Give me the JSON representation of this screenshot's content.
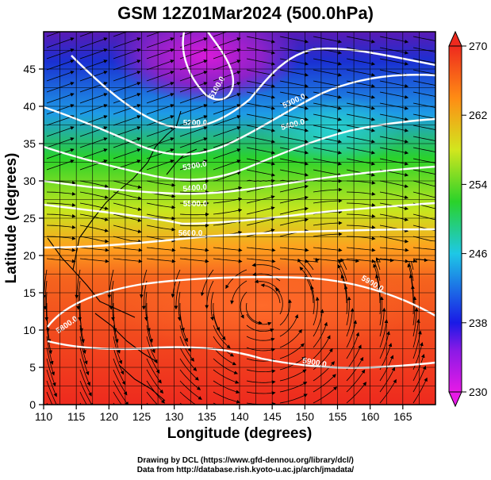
{
  "title": "GSM 12Z01Mar2024 (500.0hPa)",
  "map": {
    "lon_range": [
      110,
      170
    ],
    "lat_range": [
      0,
      50
    ],
    "x_ticks": [
      "110",
      "115",
      "120",
      "125",
      "130",
      "135",
      "140",
      "145",
      "150",
      "155",
      "160",
      "165"
    ],
    "y_ticks": [
      "0",
      "5",
      "10",
      "15",
      "20",
      "25",
      "30",
      "35",
      "40",
      "45"
    ],
    "x_label": "Longitude (degrees)",
    "y_label": "Latitude  (degrees)",
    "contours": [
      {
        "label": "5100.0",
        "value": 5100
      },
      {
        "label": "5200.0",
        "value": 5200
      },
      {
        "label": "5300.0",
        "value": 5300
      },
      {
        "label": "5400.0",
        "value": 5400
      },
      {
        "label": "5500.0",
        "value": 5500
      },
      {
        "label": "5600.0",
        "value": 5600
      },
      {
        "label": "5800.0",
        "value": 5800
      },
      {
        "label": "5900.0",
        "value": 5900
      }
    ],
    "colorbar": {
      "ticks": [
        "230",
        "238",
        "246",
        "254",
        "262",
        "270"
      ],
      "min": 230,
      "max": 270
    },
    "colors": {
      "min": "#c800c8",
      "low": "#1a1ae6",
      "mid_low": "#1ec8e6",
      "mid": "#2ad22a",
      "mid_high": "#f0e61e",
      "high": "#ff7814",
      "max": "#ee2a1e"
    }
  },
  "credits": {
    "line1": "Drawing by DCL (https://www.gfd-dennou.org/library/dcl/)",
    "line2": "Data from http://database.rish.kyoto-u.ac.jp/arch/jmadata/"
  }
}
